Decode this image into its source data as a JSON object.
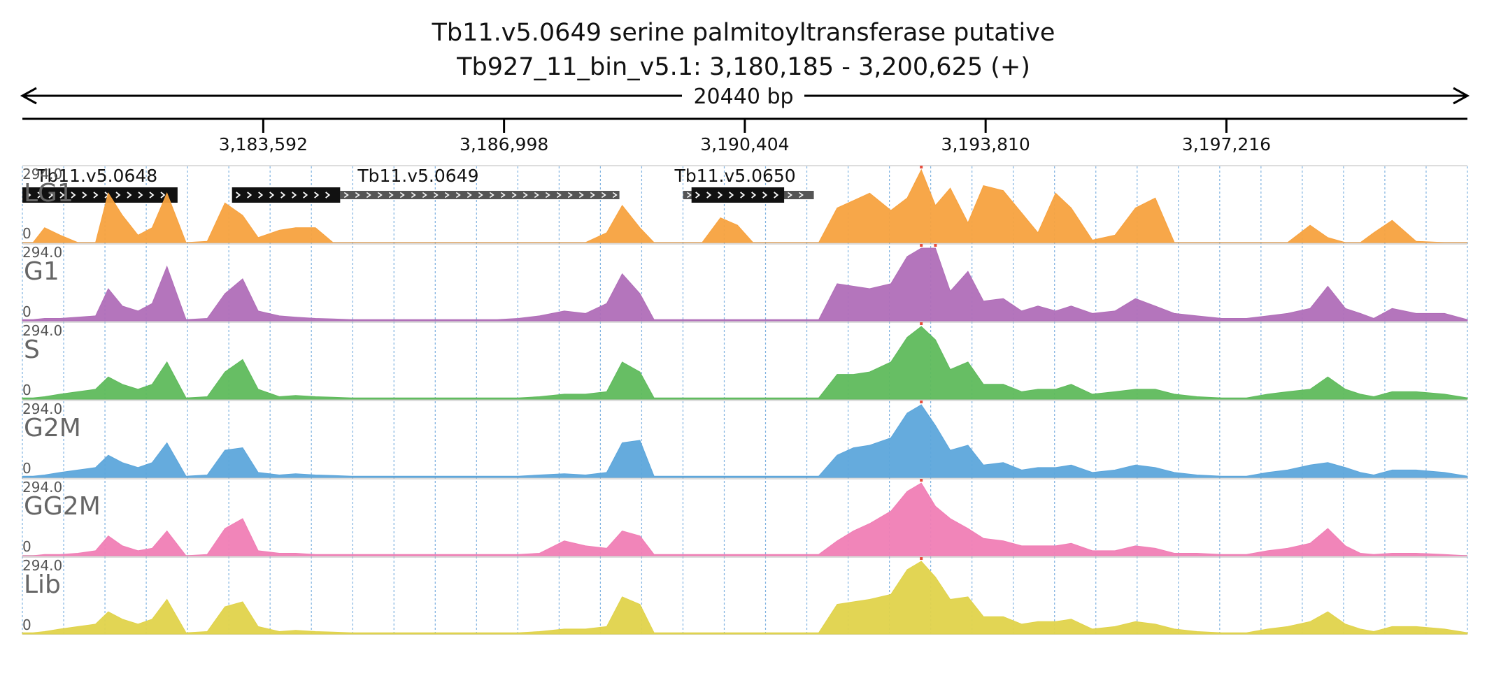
{
  "title": {
    "line1": "Tb11.v5.0649  serine palmitoyltransferase  putative",
    "line2": "Tb927_11_bin_v5.1: 3,180,185 - 3,200,625 (+)"
  },
  "span_label": "20440 bp",
  "axis": {
    "start": 3180185,
    "end": 3200625,
    "ticks": [
      {
        "value": 3183592,
        "label": "3,183,592"
      },
      {
        "value": 3186998,
        "label": "3,186,998"
      },
      {
        "value": 3190404,
        "label": "3,190,404"
      },
      {
        "value": 3193810,
        "label": "3,193,810"
      },
      {
        "value": 3197216,
        "label": "3,197,216"
      }
    ]
  },
  "genes": [
    {
      "name": "Tb11.v5.0648",
      "cds": [
        3180185,
        3182380
      ],
      "utr": []
    },
    {
      "name": "Tb11.v5.0649",
      "cds": [
        3183150,
        3184680
      ],
      "utr": [
        3184680,
        3188630
      ]
    },
    {
      "name": "Tb11.v5.0650",
      "cds": [
        3189650,
        3190960
      ],
      "utr": [
        3189530,
        3191380
      ]
    }
  ],
  "chart_data": {
    "type": "area",
    "x_range": [
      3180185,
      3200625
    ],
    "y_max_label": "294.0",
    "y_min_label": "0",
    "ylim": [
      0,
      294
    ],
    "grid_x": [
      3180185,
      3180769,
      3181353,
      3181937,
      3182521,
      3183105,
      3183689,
      3184273,
      3184857,
      3185441,
      3186025,
      3186609,
      3187193,
      3187777,
      3188361,
      3188945,
      3189529,
      3190113,
      3190697,
      3191281,
      3191865,
      3192449,
      3193033,
      3193617,
      3194201,
      3194785,
      3195369,
      3195953,
      3196537,
      3197121,
      3197705,
      3198289,
      3198873,
      3199457,
      3200041,
      3200625
    ],
    "x_points": [
      3180185,
      3180335,
      3180500,
      3180720,
      3180970,
      3181220,
      3181400,
      3181600,
      3181820,
      3182020,
      3182230,
      3182500,
      3182800,
      3183050,
      3183300,
      3183520,
      3183820,
      3184050,
      3184330,
      3184580,
      3184840,
      3185120,
      3185400,
      3185700,
      3186000,
      3186300,
      3186600,
      3186900,
      3187200,
      3187500,
      3187850,
      3188150,
      3188450,
      3188670,
      3188920,
      3189120,
      3189300,
      3189530,
      3189800,
      3190060,
      3190300,
      3190520,
      3190800,
      3191150,
      3191450,
      3191710,
      3191940,
      3192170,
      3192470,
      3192700,
      3192900,
      3193100,
      3193310,
      3193560,
      3193780,
      3194060,
      3194320,
      3194550,
      3194800,
      3195020,
      3195320,
      3195640,
      3195930,
      3196210,
      3196480,
      3196800,
      3197150,
      3197500,
      3197800,
      3198080,
      3198400,
      3198650,
      3198900,
      3199110,
      3199300,
      3199560,
      3199900,
      3200300,
      3200625
    ],
    "series": [
      {
        "name": "LG1",
        "color": "#f7a23f",
        "values": [
          0,
          0,
          60,
          30,
          0,
          0,
          200,
          110,
          30,
          60,
          200,
          0,
          5,
          160,
          110,
          20,
          50,
          60,
          60,
          0,
          0,
          0,
          0,
          0,
          0,
          0,
          0,
          0,
          0,
          0,
          0,
          0,
          40,
          150,
          60,
          0,
          0,
          0,
          0,
          100,
          70,
          0,
          0,
          0,
          0,
          140,
          170,
          200,
          130,
          180,
          294,
          150,
          220,
          80,
          230,
          210,
          120,
          40,
          200,
          140,
          10,
          30,
          140,
          180,
          0,
          0,
          0,
          0,
          0,
          0,
          70,
          20,
          0,
          0,
          40,
          90,
          5,
          0,
          0
        ]
      },
      {
        "name": "G1",
        "color": "#b06eb8",
        "values": [
          5,
          5,
          10,
          10,
          15,
          20,
          130,
          60,
          40,
          70,
          220,
          5,
          10,
          110,
          170,
          40,
          20,
          15,
          10,
          8,
          5,
          5,
          5,
          5,
          5,
          5,
          5,
          5,
          10,
          20,
          40,
          30,
          70,
          190,
          110,
          5,
          5,
          5,
          5,
          5,
          5,
          5,
          5,
          5,
          5,
          150,
          140,
          130,
          150,
          260,
          294,
          294,
          120,
          200,
          80,
          90,
          40,
          60,
          40,
          60,
          30,
          40,
          90,
          60,
          30,
          20,
          10,
          10,
          20,
          30,
          50,
          140,
          50,
          30,
          10,
          50,
          30,
          30,
          5
        ]
      },
      {
        "name": "S",
        "color": "#5fba5c",
        "values": [
          5,
          5,
          10,
          20,
          30,
          40,
          90,
          60,
          40,
          60,
          150,
          5,
          10,
          110,
          160,
          40,
          10,
          15,
          10,
          8,
          5,
          5,
          5,
          5,
          5,
          5,
          5,
          5,
          5,
          10,
          20,
          20,
          30,
          150,
          110,
          5,
          5,
          5,
          5,
          5,
          5,
          5,
          5,
          5,
          5,
          100,
          100,
          110,
          150,
          250,
          294,
          240,
          120,
          150,
          60,
          60,
          30,
          40,
          40,
          60,
          20,
          30,
          40,
          40,
          20,
          10,
          5,
          5,
          20,
          30,
          40,
          90,
          40,
          20,
          10,
          30,
          30,
          20,
          5
        ]
      },
      {
        "name": "G2M",
        "color": "#5da6db",
        "values": [
          5,
          5,
          10,
          20,
          30,
          40,
          90,
          60,
          40,
          60,
          140,
          5,
          10,
          110,
          120,
          20,
          10,
          15,
          10,
          8,
          5,
          5,
          5,
          5,
          5,
          5,
          5,
          5,
          5,
          10,
          15,
          10,
          20,
          140,
          150,
          5,
          5,
          5,
          5,
          5,
          5,
          5,
          5,
          5,
          5,
          90,
          120,
          130,
          160,
          260,
          294,
          210,
          110,
          130,
          50,
          60,
          30,
          40,
          40,
          50,
          20,
          30,
          50,
          40,
          20,
          10,
          5,
          5,
          20,
          30,
          50,
          60,
          40,
          20,
          10,
          30,
          30,
          20,
          5
        ]
      },
      {
        "name": "GG2M",
        "color": "#f07eb5",
        "values": [
          0,
          0,
          5,
          5,
          10,
          20,
          80,
          40,
          20,
          30,
          100,
          0,
          5,
          110,
          150,
          20,
          10,
          10,
          5,
          5,
          5,
          5,
          5,
          5,
          5,
          5,
          5,
          5,
          5,
          10,
          60,
          40,
          30,
          100,
          80,
          5,
          5,
          5,
          5,
          5,
          5,
          5,
          5,
          5,
          5,
          60,
          100,
          130,
          180,
          260,
          294,
          200,
          150,
          110,
          70,
          60,
          40,
          40,
          40,
          50,
          20,
          20,
          40,
          30,
          10,
          10,
          5,
          5,
          20,
          30,
          50,
          110,
          40,
          10,
          5,
          10,
          10,
          5,
          0
        ]
      },
      {
        "name": "Lib",
        "color": "#e0d34b",
        "values": [
          5,
          5,
          10,
          20,
          30,
          40,
          90,
          60,
          40,
          60,
          140,
          5,
          10,
          110,
          130,
          30,
          10,
          15,
          10,
          8,
          5,
          5,
          5,
          5,
          5,
          5,
          5,
          5,
          5,
          10,
          20,
          20,
          30,
          150,
          120,
          5,
          5,
          5,
          5,
          5,
          5,
          5,
          5,
          5,
          5,
          120,
          130,
          140,
          160,
          260,
          294,
          230,
          140,
          150,
          70,
          70,
          40,
          50,
          50,
          60,
          20,
          30,
          50,
          40,
          20,
          10,
          5,
          5,
          20,
          30,
          50,
          90,
          40,
          20,
          10,
          30,
          30,
          20,
          5
        ]
      }
    ]
  }
}
